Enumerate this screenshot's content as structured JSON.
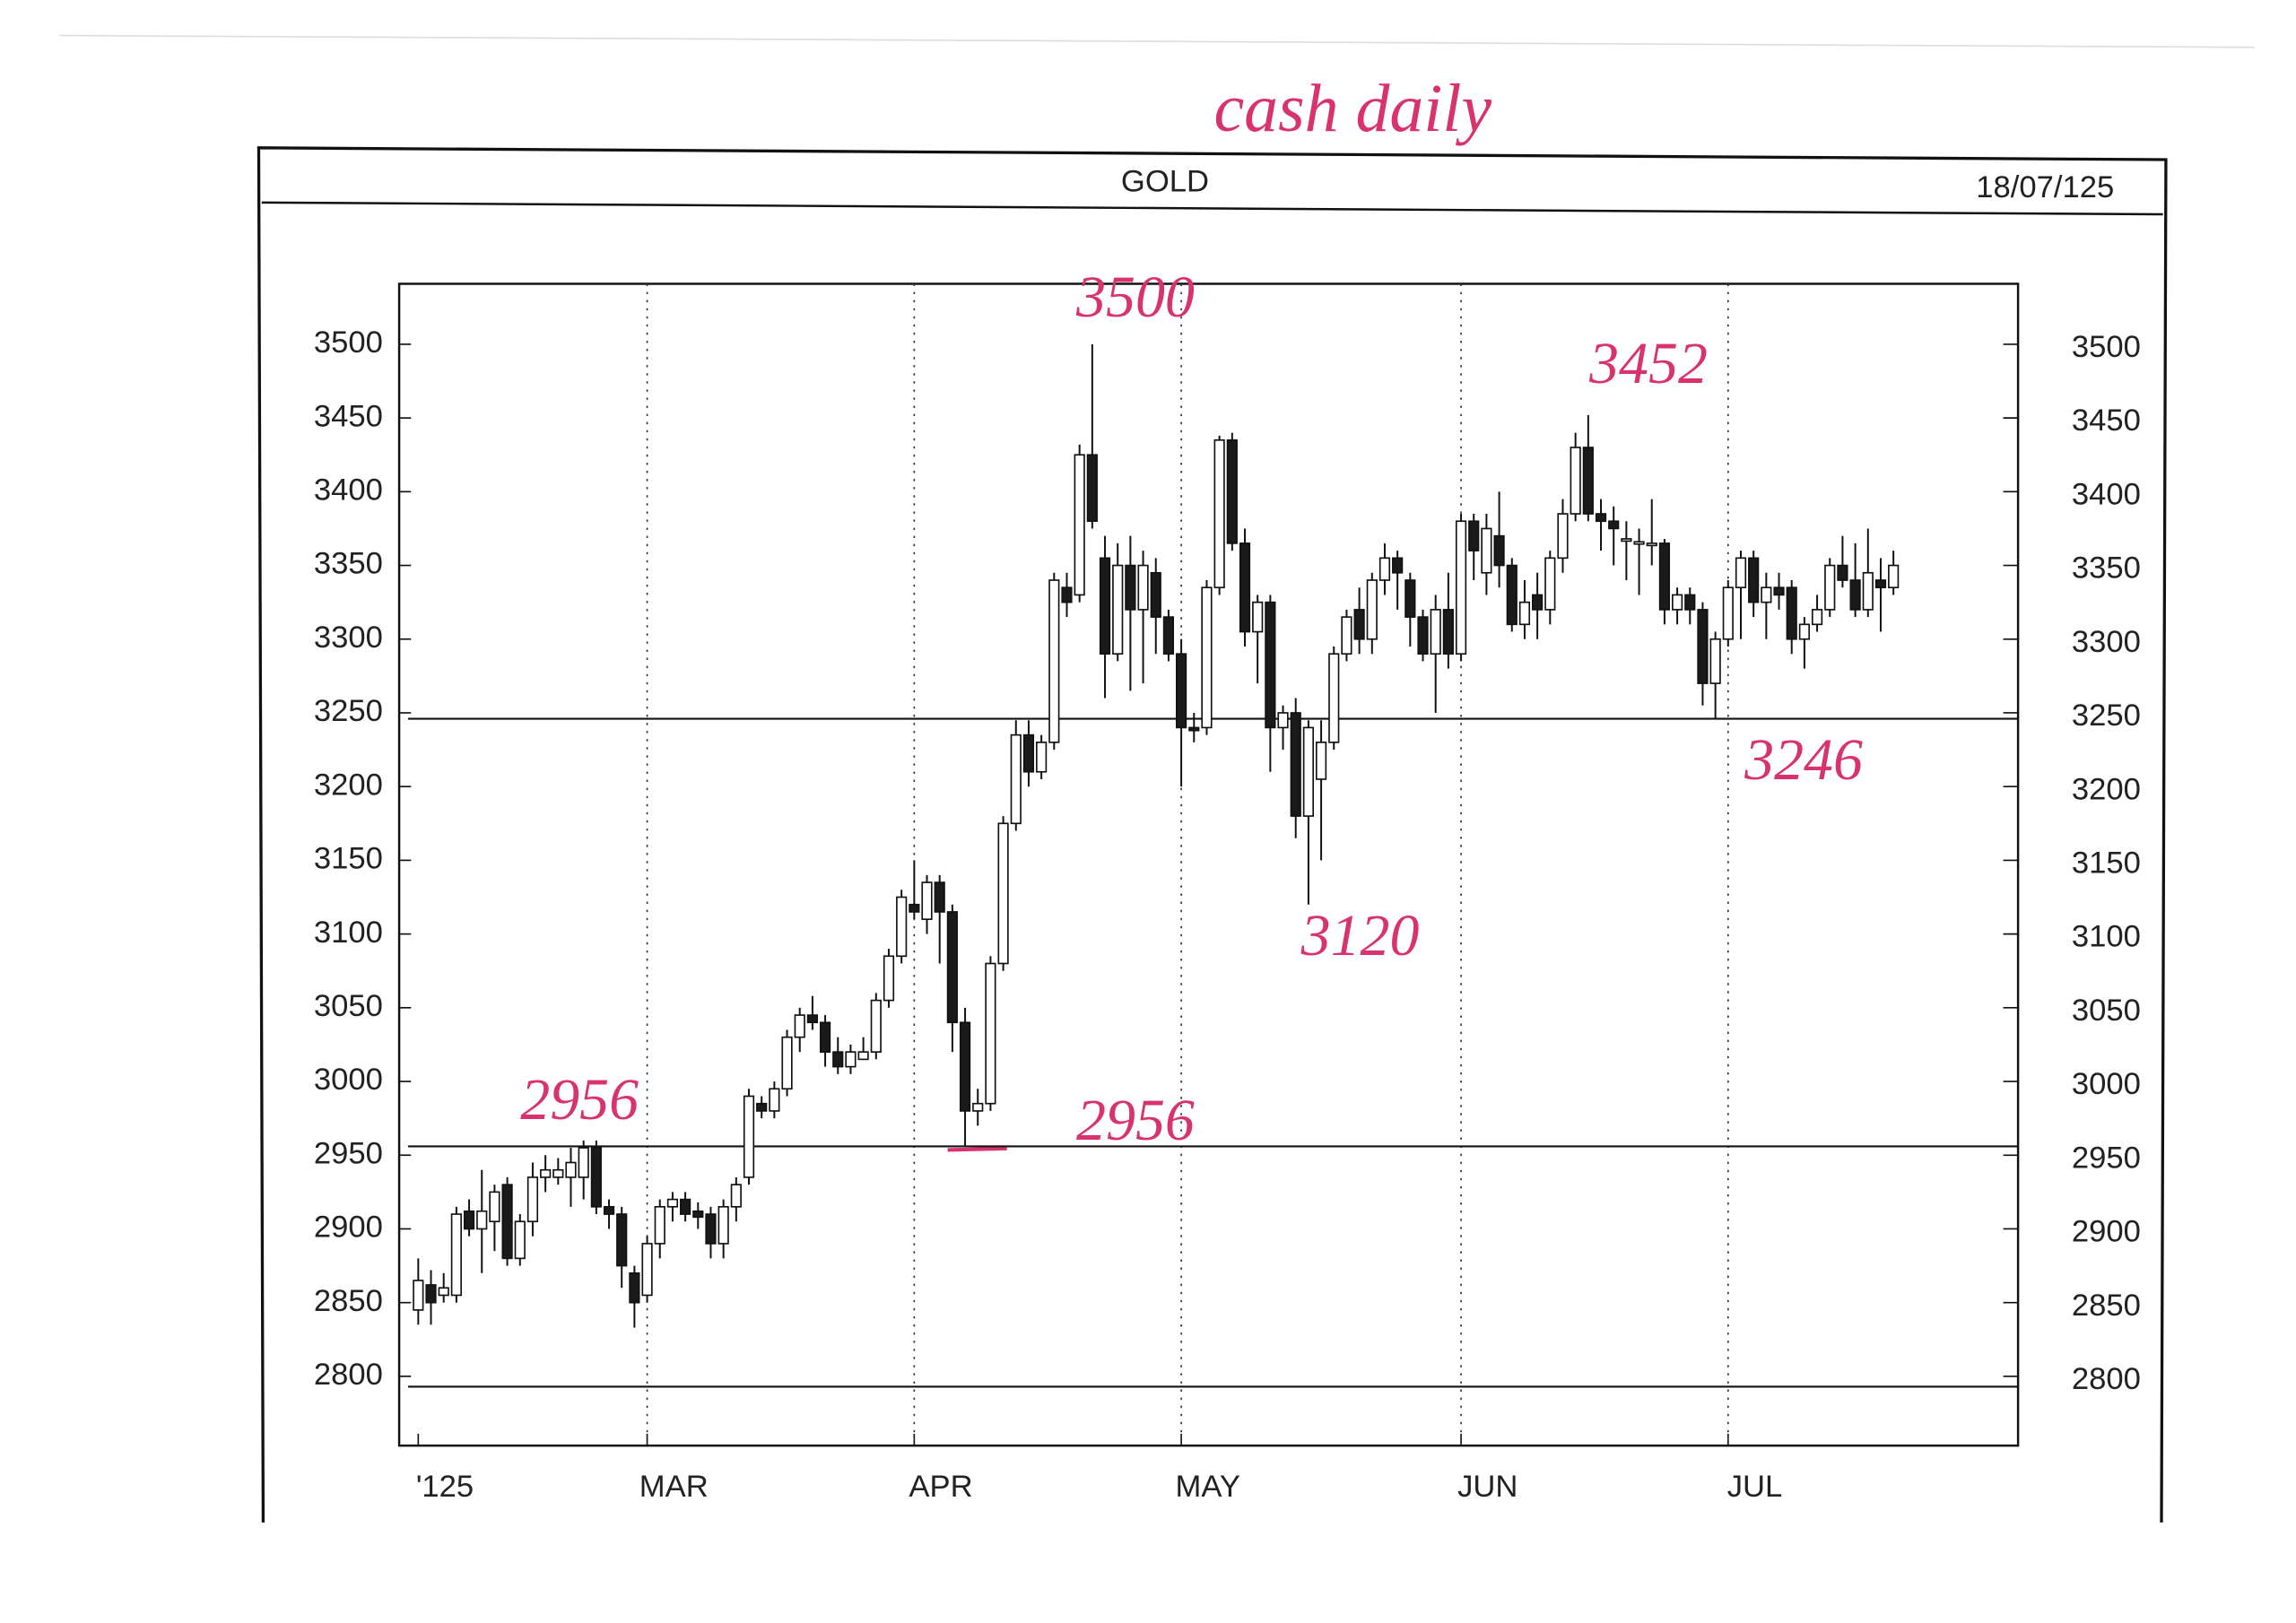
{
  "chart_data": {
    "type": "candlestick",
    "title": "GOLD",
    "date": "18/07/125",
    "handwritten_title": "cash daily",
    "x": [
      0,
      1,
      2,
      3,
      4,
      5,
      6,
      7,
      8,
      9,
      10,
      11,
      12,
      13,
      14,
      15,
      16,
      17,
      18,
      19,
      20,
      21,
      22,
      23,
      24,
      25,
      26,
      27,
      28,
      29,
      30,
      31,
      32,
      33,
      34,
      35,
      36,
      37,
      38,
      39,
      40,
      41,
      42,
      43,
      44,
      45,
      46,
      47,
      48,
      49,
      50,
      51,
      52,
      53,
      54,
      55,
      56,
      57,
      58,
      59,
      60,
      61,
      62,
      63,
      64,
      65,
      66,
      67,
      68,
      69,
      70,
      71,
      72,
      73,
      74,
      75,
      76,
      77,
      78,
      79,
      80,
      81,
      82,
      83,
      84,
      85,
      86,
      87,
      88,
      89,
      90,
      91,
      92,
      93,
      94,
      95,
      96,
      97,
      98,
      99,
      100,
      101,
      102,
      103,
      104,
      105,
      106,
      107,
      108,
      109,
      110,
      111,
      112,
      113,
      114,
      115,
      116
    ],
    "ohlc": [
      [
        2845,
        2880,
        2835,
        2865
      ],
      [
        2862,
        2872,
        2835,
        2850
      ],
      [
        2855,
        2870,
        2850,
        2860
      ],
      [
        2855,
        2915,
        2850,
        2910
      ],
      [
        2912,
        2920,
        2895,
        2900
      ],
      [
        2900,
        2940,
        2870,
        2912
      ],
      [
        2905,
        2930,
        2885,
        2925
      ],
      [
        2930,
        2935,
        2875,
        2880
      ],
      [
        2880,
        2910,
        2875,
        2905
      ],
      [
        2905,
        2945,
        2895,
        2935
      ],
      [
        2935,
        2950,
        2925,
        2940
      ],
      [
        2935,
        2948,
        2930,
        2940
      ],
      [
        2935,
        2955,
        2915,
        2945
      ],
      [
        2935,
        2960,
        2920,
        2955
      ],
      [
        2955,
        2960,
        2910,
        2915
      ],
      [
        2915,
        2920,
        2900,
        2910
      ],
      [
        2910,
        2915,
        2860,
        2875
      ],
      [
        2870,
        2875,
        2833,
        2850
      ],
      [
        2855,
        2895,
        2850,
        2890
      ],
      [
        2890,
        2920,
        2880,
        2915
      ],
      [
        2915,
        2925,
        2905,
        2920
      ],
      [
        2920,
        2925,
        2905,
        2910
      ],
      [
        2912,
        2918,
        2900,
        2908
      ],
      [
        2910,
        2915,
        2880,
        2890
      ],
      [
        2890,
        2920,
        2880,
        2915
      ],
      [
        2915,
        2935,
        2905,
        2930
      ],
      [
        2935,
        2995,
        2930,
        2990
      ],
      [
        2985,
        2990,
        2975,
        2980
      ],
      [
        2980,
        3000,
        2975,
        2995
      ],
      [
        2995,
        3035,
        2990,
        3030
      ],
      [
        3030,
        3050,
        3020,
        3045
      ],
      [
        3045,
        3058,
        3035,
        3040
      ],
      [
        3040,
        3045,
        3010,
        3020
      ],
      [
        3020,
        3030,
        3005,
        3010
      ],
      [
        3010,
        3025,
        3005,
        3020
      ],
      [
        3015,
        3030,
        3015,
        3020
      ],
      [
        3020,
        3060,
        3015,
        3055
      ],
      [
        3055,
        3090,
        3050,
        3085
      ],
      [
        3085,
        3130,
        3080,
        3125
      ],
      [
        3120,
        3150,
        3110,
        3115
      ],
      [
        3110,
        3140,
        3100,
        3135
      ],
      [
        3135,
        3140,
        3080,
        3115
      ],
      [
        3115,
        3120,
        3020,
        3040
      ],
      [
        3040,
        3050,
        2956,
        2980
      ],
      [
        2980,
        2995,
        2970,
        2985
      ],
      [
        2985,
        3085,
        2980,
        3080
      ],
      [
        3080,
        3180,
        3075,
        3175
      ],
      [
        3175,
        3245,
        3170,
        3235
      ],
      [
        3235,
        3245,
        3200,
        3210
      ],
      [
        3210,
        3235,
        3205,
        3230
      ],
      [
        3230,
        3345,
        3225,
        3340
      ],
      [
        3335,
        3345,
        3315,
        3325
      ],
      [
        3330,
        3432,
        3325,
        3425
      ],
      [
        3425,
        3500,
        3375,
        3380
      ],
      [
        3355,
        3370,
        3260,
        3290
      ],
      [
        3290,
        3365,
        3285,
        3350
      ],
      [
        3350,
        3370,
        3265,
        3320
      ],
      [
        3320,
        3360,
        3270,
        3350
      ],
      [
        3345,
        3355,
        3290,
        3315
      ],
      [
        3315,
        3320,
        3285,
        3290
      ],
      [
        3290,
        3300,
        3200,
        3240
      ],
      [
        3240,
        3250,
        3230,
        3238
      ],
      [
        3240,
        3340,
        3235,
        3335
      ],
      [
        3335,
        3438,
        3330,
        3435
      ],
      [
        3435,
        3440,
        3360,
        3365
      ],
      [
        3365,
        3375,
        3295,
        3305
      ],
      [
        3305,
        3330,
        3270,
        3325
      ],
      [
        3325,
        3330,
        3210,
        3240
      ],
      [
        3240,
        3255,
        3225,
        3250
      ],
      [
        3250,
        3260,
        3165,
        3180
      ],
      [
        3180,
        3245,
        3120,
        3240
      ],
      [
        3205,
        3245,
        3150,
        3230
      ],
      [
        3230,
        3295,
        3225,
        3290
      ],
      [
        3290,
        3320,
        3285,
        3315
      ],
      [
        3320,
        3335,
        3290,
        3300
      ],
      [
        3300,
        3345,
        3290,
        3340
      ],
      [
        3340,
        3365,
        3330,
        3355
      ],
      [
        3355,
        3360,
        3320,
        3345
      ],
      [
        3340,
        3345,
        3295,
        3315
      ],
      [
        3315,
        3320,
        3285,
        3290
      ],
      [
        3290,
        3330,
        3250,
        3320
      ],
      [
        3320,
        3345,
        3280,
        3290
      ],
      [
        3290,
        3385,
        3285,
        3380
      ],
      [
        3380,
        3385,
        3340,
        3360
      ],
      [
        3345,
        3385,
        3330,
        3375
      ],
      [
        3370,
        3400,
        3335,
        3350
      ],
      [
        3350,
        3355,
        3305,
        3310
      ],
      [
        3310,
        3340,
        3300,
        3325
      ],
      [
        3330,
        3345,
        3300,
        3320
      ],
      [
        3320,
        3360,
        3310,
        3355
      ],
      [
        3355,
        3395,
        3345,
        3385
      ],
      [
        3385,
        3440,
        3380,
        3430
      ],
      [
        3430,
        3452,
        3380,
        3385
      ],
      [
        3385,
        3395,
        3360,
        3380
      ],
      [
        3380,
        3390,
        3350,
        3375
      ],
      [
        3368,
        3380,
        3340,
        3368
      ],
      [
        3366,
        3375,
        3330,
        3366
      ],
      [
        3365,
        3395,
        3350,
        3365
      ],
      [
        3365,
        3368,
        3310,
        3320
      ],
      [
        3320,
        3335,
        3310,
        3330
      ],
      [
        3330,
        3335,
        3310,
        3320
      ],
      [
        3320,
        3325,
        3255,
        3270
      ],
      [
        3270,
        3305,
        3246,
        3300
      ],
      [
        3300,
        3340,
        3295,
        3335
      ],
      [
        3335,
        3360,
        3300,
        3355
      ],
      [
        3355,
        3360,
        3315,
        3325
      ],
      [
        3325,
        3345,
        3300,
        3335
      ],
      [
        3335,
        3345,
        3320,
        3330
      ],
      [
        3335,
        3340,
        3290,
        3300
      ],
      [
        3300,
        3315,
        3280,
        3310
      ],
      [
        3310,
        3330,
        3305,
        3320
      ],
      [
        3320,
        3355,
        3315,
        3350
      ],
      [
        3350,
        3370,
        3335,
        3340
      ],
      [
        3340,
        3365,
        3315,
        3320
      ],
      [
        3320,
        3375,
        3315,
        3345
      ],
      [
        3340,
        3355,
        3305,
        3335
      ],
      [
        3335,
        3360,
        3330,
        3350
      ]
    ],
    "xlim": [
      -1.5,
      125.8
    ],
    "xticks": [
      {
        "value": 0,
        "label": "'125"
      },
      {
        "value": 18,
        "label": "MAR"
      },
      {
        "value": 39,
        "label": "APR"
      },
      {
        "value": 60,
        "label": "MAY"
      },
      {
        "value": 82,
        "label": "JUN"
      },
      {
        "value": 103,
        "label": "JUL"
      }
    ],
    "ylim": [
      2753,
      3541
    ],
    "yticks": [
      2800,
      2850,
      2900,
      2950,
      3000,
      3050,
      3100,
      3150,
      3200,
      3250,
      3300,
      3350,
      3400,
      3450,
      3500
    ],
    "hlines": [
      3246,
      2956,
      2793
    ],
    "annotations": [
      "3500",
      "3452",
      "3246",
      "3120",
      "2956",
      "2956"
    ],
    "grid": true,
    "up_color": "#ffffff",
    "down_color": "#1a1a1a",
    "annotation_color": "#d8336e"
  }
}
